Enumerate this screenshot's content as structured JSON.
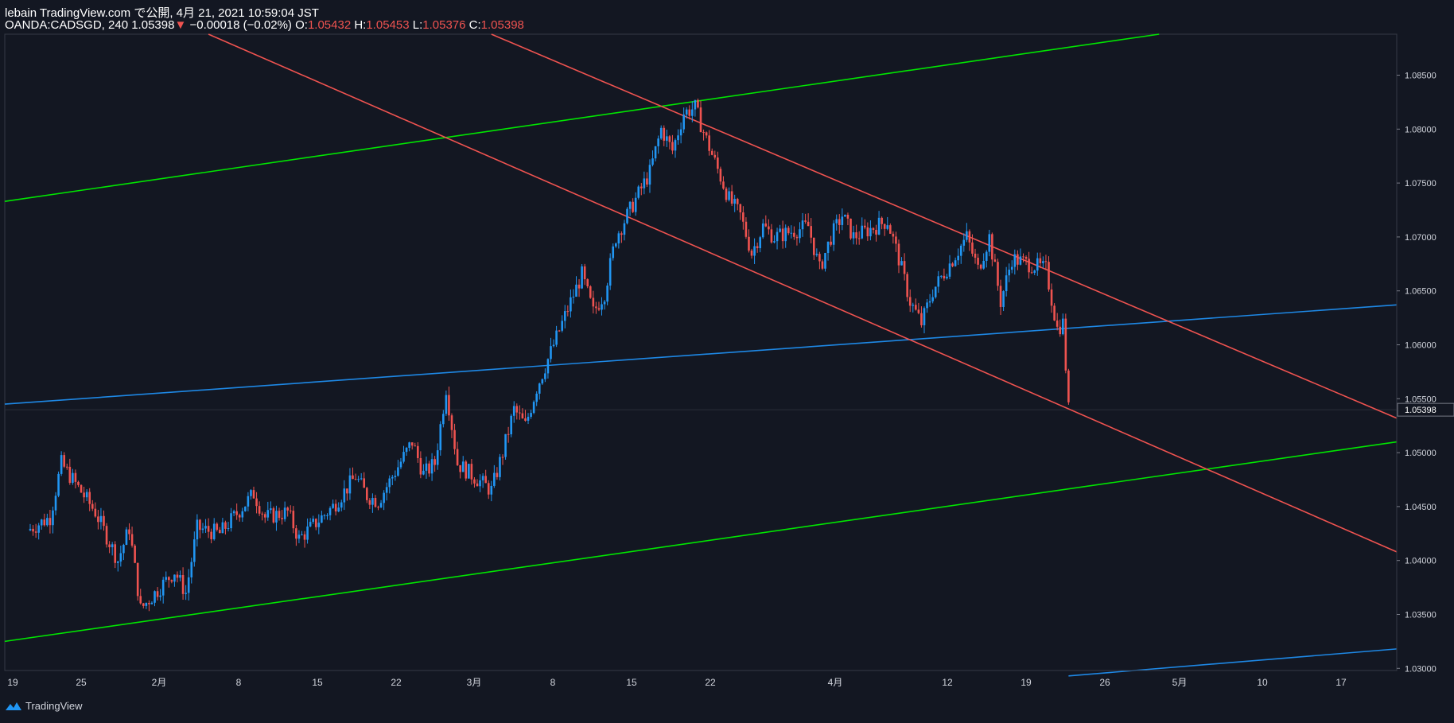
{
  "header": {
    "line1": "lebain TradingView.com で公開, 4月 21, 2021 10:59:04 JST",
    "symbol": "OANDA:CADSGD, 240",
    "last": "1.05398",
    "arrow": "▼",
    "change": "−0.00018 (−0.02%)",
    "o_label": "O:",
    "o_value": "1.05432",
    "h_label": "H:",
    "h_value": "1.05453",
    "l_label": "L:",
    "l_value": "1.05376",
    "c_label": "C:",
    "c_value": "1.05398"
  },
  "footer": {
    "brand": "TradingView"
  },
  "colors": {
    "background": "#131722",
    "up": "#2196f3",
    "down": "#ef5350",
    "green_line": "#00e600",
    "blue_line": "#2962ff",
    "red_line": "#ef5350"
  },
  "chart_data": {
    "type": "candlestick",
    "ylim": [
      1.0298,
      1.0888
    ],
    "y_ticks": [
      "1.08500",
      "1.08000",
      "1.07500",
      "1.07000",
      "1.06500",
      "1.06000",
      "1.05500",
      "1.05000",
      "1.04500",
      "1.04000",
      "1.03500",
      "1.03000"
    ],
    "x_ticks": [
      "19",
      "25",
      "2月",
      "8",
      "15",
      "22",
      "3月",
      "8",
      "15",
      "22",
      "4月",
      "12",
      "19",
      "26",
      "5月",
      "10",
      "17"
    ],
    "last_price_label": "1.05398",
    "candle_path": [
      [
        "2021-01-19",
        1.0428
      ],
      [
        "2021-01-21",
        1.044
      ],
      [
        "2021-01-22",
        1.049
      ],
      [
        "2021-01-25",
        1.0445
      ],
      [
        "2021-01-27",
        1.04
      ],
      [
        "2021-01-28",
        1.043
      ],
      [
        "2021-01-29",
        1.0355
      ],
      [
        "2021-02-01",
        1.039
      ],
      [
        "2021-02-02",
        1.037
      ],
      [
        "2021-02-03",
        1.043
      ],
      [
        "2021-02-05",
        1.0425
      ],
      [
        "2021-02-08",
        1.0462
      ],
      [
        "2021-02-09",
        1.044
      ],
      [
        "2021-02-11",
        1.0445
      ],
      [
        "2021-02-12",
        1.042
      ],
      [
        "2021-02-15",
        1.045
      ],
      [
        "2021-02-17",
        1.0478
      ],
      [
        "2021-02-18",
        1.046
      ],
      [
        "2021-02-19",
        1.0455
      ],
      [
        "2021-02-22",
        1.051
      ],
      [
        "2021-02-23",
        1.048
      ],
      [
        "2021-02-24",
        1.049
      ],
      [
        "2021-02-25",
        1.056
      ],
      [
        "2021-02-26",
        1.049
      ],
      [
        "2021-03-01",
        1.0465
      ],
      [
        "2021-03-02",
        1.05
      ],
      [
        "2021-03-03",
        1.054
      ],
      [
        "2021-03-04",
        1.0525
      ],
      [
        "2021-03-05",
        1.056
      ],
      [
        "2021-03-08",
        1.064
      ],
      [
        "2021-03-09",
        1.0665
      ],
      [
        "2021-03-10",
        1.063
      ],
      [
        "2021-03-11",
        1.0648
      ],
      [
        "2021-03-12",
        1.07
      ],
      [
        "2021-03-15",
        1.076
      ],
      [
        "2021-03-16",
        1.08
      ],
      [
        "2021-03-17",
        1.078
      ],
      [
        "2021-03-18",
        1.0815
      ],
      [
        "2021-03-19",
        1.082
      ],
      [
        "2021-03-20",
        1.079
      ],
      [
        "2021-03-22",
        1.0735
      ],
      [
        "2021-03-23",
        1.072
      ],
      [
        "2021-03-24",
        1.0685
      ],
      [
        "2021-03-25",
        1.071
      ],
      [
        "2021-03-26",
        1.07
      ],
      [
        "2021-03-29",
        1.071
      ],
      [
        "2021-03-30",
        1.067
      ],
      [
        "2021-03-31",
        1.07
      ],
      [
        "2021-04-01",
        1.072
      ],
      [
        "2021-04-02",
        1.07
      ],
      [
        "2021-04-05",
        1.0715
      ],
      [
        "2021-04-06",
        1.068
      ],
      [
        "2021-04-07",
        1.064
      ],
      [
        "2021-04-08",
        1.062
      ],
      [
        "2021-04-09",
        1.065
      ],
      [
        "2021-04-12",
        1.07
      ],
      [
        "2021-04-13",
        1.067
      ],
      [
        "2021-04-14",
        1.07
      ],
      [
        "2021-04-15",
        1.064
      ],
      [
        "2021-04-16",
        1.068
      ],
      [
        "2021-04-19",
        1.067
      ],
      [
        "2021-04-20",
        1.0615
      ],
      [
        "2021-04-20T12:00",
        1.062
      ],
      [
        "2021-04-21",
        1.054
      ]
    ],
    "trendlines": [
      {
        "color": "green",
        "from": [
          "2021-01-17",
          1.0733
        ],
        "to": [
          "2021-04-29",
          1.0888
        ]
      },
      {
        "color": "green",
        "from": [
          "2021-01-17",
          1.0325
        ],
        "to": [
          "2021-05-20",
          1.051
        ]
      },
      {
        "color": "blue",
        "from": [
          "2021-01-17",
          1.0545
        ],
        "to": [
          "2021-05-20",
          1.0637
        ]
      },
      {
        "color": "blue",
        "from": [
          "2021-04-21",
          1.0293
        ],
        "to": [
          "2021-05-20",
          1.0318
        ]
      },
      {
        "color": "red",
        "from": [
          "2021-02-04",
          1.0888
        ],
        "to": [
          "2021-05-20",
          1.0408
        ]
      },
      {
        "color": "red",
        "from": [
          "2021-03-01",
          1.0888
        ],
        "to": [
          "2021-05-20",
          1.0532
        ]
      }
    ]
  }
}
